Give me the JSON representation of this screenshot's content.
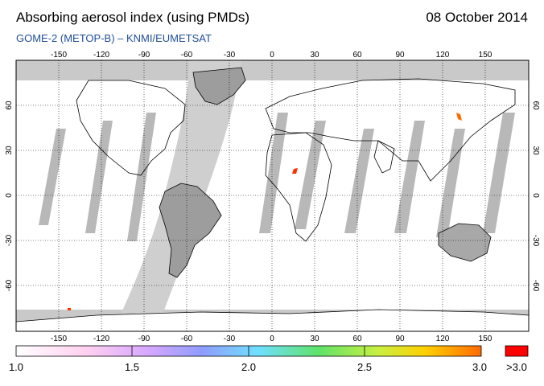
{
  "header": {
    "title": "Absorbing aerosol index (using PMDs)",
    "date": "08 October 2014",
    "subtitle": "GOME-2 (METOP-B)  –  KNMI/EUMETSAT"
  },
  "map": {
    "lon_ticks_top": [
      "-150",
      "-120",
      "-90",
      "-60",
      "-30",
      "0",
      "30",
      "60",
      "90",
      "120",
      "150"
    ],
    "lon_ticks_bottom": [
      "-150",
      "-120",
      "-90",
      "-60",
      "-30",
      "0",
      "30",
      "60",
      "90",
      "120",
      "150"
    ],
    "lat_ticks": [
      "60",
      "30",
      "0",
      "-30",
      "-60"
    ],
    "colors": {
      "no_data": "#c9c9c9",
      "swath_gap": "#a9a9a9",
      "land": "#9d9d9d",
      "ocean": "#ffffff",
      "grid": "#000000"
    }
  },
  "colorbar": {
    "labels": [
      "1.0",
      "1.5",
      "2.0",
      "2.5",
      "3.0"
    ],
    "overflow_label": ">3.0",
    "gradient": [
      "#ffffff",
      "#ffd0f0",
      "#d9a8ff",
      "#8f9cff",
      "#6fe0ff",
      "#5fe26a",
      "#c9f040",
      "#ffd000",
      "#ff6a00"
    ],
    "overflow_color": "#ff0000"
  }
}
